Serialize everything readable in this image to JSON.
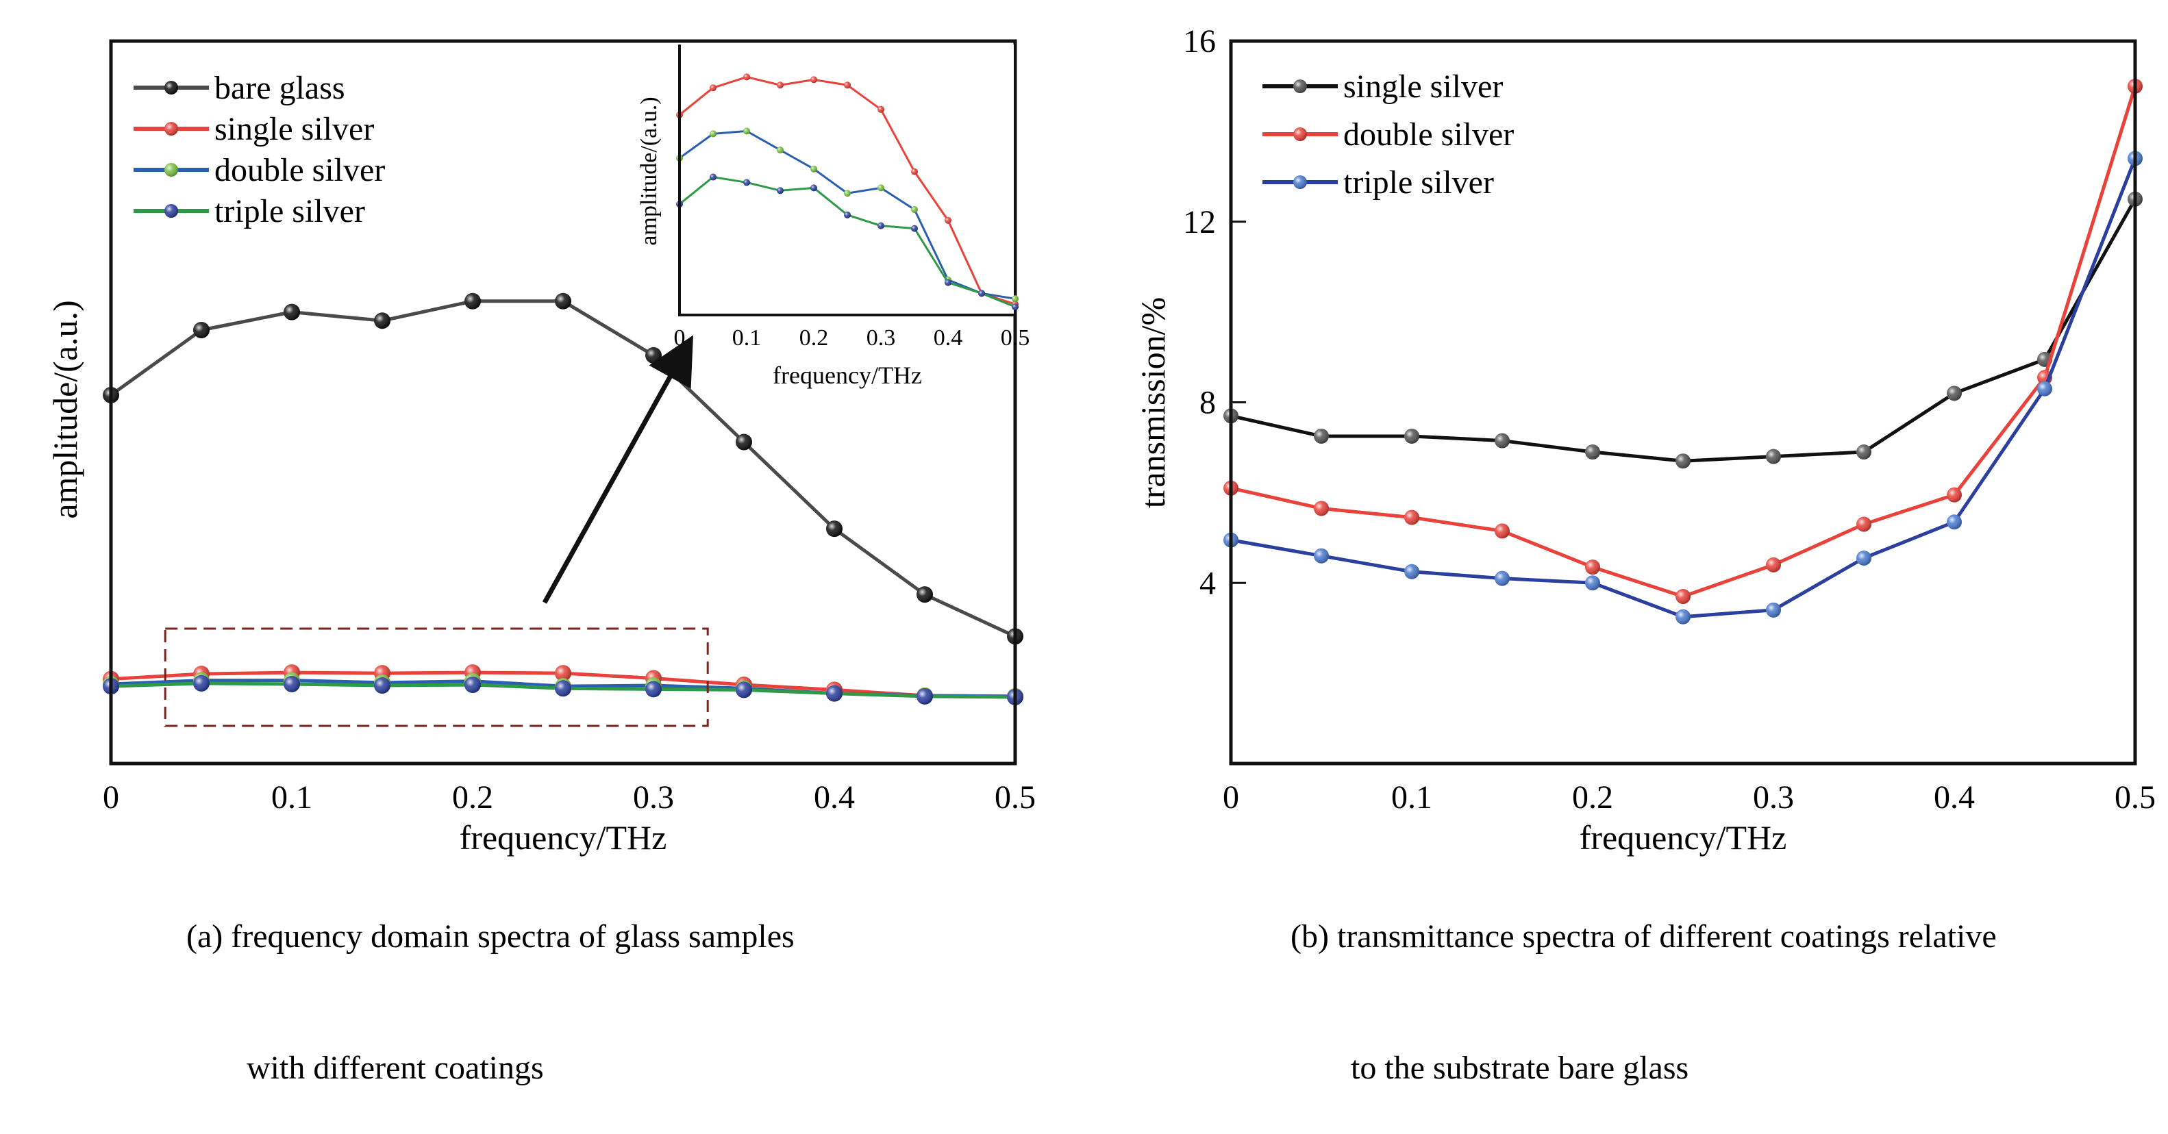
{
  "chart_data": [
    {
      "type": "line",
      "panel": "a",
      "caption_line1": "(a) frequency domain spectra of glass samples",
      "caption_line2": "with different coatings",
      "xlabel": "frequency/THz",
      "ylabel": "amplitude/(a.u.)",
      "xlim": [
        0,
        0.5
      ],
      "ylim": [
        0,
        1
      ],
      "x_ticks": [
        "0",
        "0.1",
        "0.2",
        "0.3",
        "0.4",
        "0.5"
      ],
      "grid": false,
      "legend_position": "top-left",
      "x": [
        0,
        0.05,
        0.1,
        0.15,
        0.2,
        0.25,
        0.3,
        0.35,
        0.4,
        0.45,
        0.5
      ],
      "series": [
        {
          "name": "bare glass",
          "color": "#4a4a4a",
          "marker": "#111111",
          "values": [
            0.51,
            0.6,
            0.625,
            0.613,
            0.64,
            0.64,
            0.565,
            0.445,
            0.325,
            0.234,
            0.176
          ]
        },
        {
          "name": "single silver",
          "color": "#e8423a",
          "marker": "#e8423a",
          "values": [
            0.117,
            0.124,
            0.126,
            0.125,
            0.126,
            0.125,
            0.118,
            0.109,
            0.102,
            0.094,
            0.093
          ]
        },
        {
          "name": "double silver",
          "color": "#2a5fb0",
          "marker": "#7cc242",
          "values": [
            0.11,
            0.115,
            0.115,
            0.112,
            0.114,
            0.107,
            0.108,
            0.104,
            0.097,
            0.094,
            0.093
          ]
        },
        {
          "name": "triple silver",
          "color": "#2e9a47",
          "marker": "#2b3f9e",
          "values": [
            0.107,
            0.111,
            0.11,
            0.108,
            0.109,
            0.104,
            0.103,
            0.102,
            0.097,
            0.093,
            0.092
          ]
        }
      ],
      "zoom_box": {
        "x_range": [
          0.03,
          0.33
        ]
      },
      "inset": {
        "xlabel": "frequency/THz",
        "ylabel": "amplitude/(a.u.)",
        "xlim": [
          0,
          0.5
        ],
        "ylim": [
          0,
          1
        ],
        "x_ticks": [
          "0",
          "0.1",
          "0.2",
          "0.3",
          "0.4",
          "0.5"
        ],
        "x": [
          0,
          0.05,
          0.1,
          0.15,
          0.2,
          0.25,
          0.3,
          0.35,
          0.4,
          0.45,
          0.5
        ],
        "series": [
          {
            "name": "single silver",
            "color": "#e8423a",
            "marker": "#e8423a",
            "values": [
              0.74,
              0.84,
              0.88,
              0.85,
              0.87,
              0.85,
              0.76,
              0.53,
              0.35,
              0.08,
              0.04
            ]
          },
          {
            "name": "double silver",
            "color": "#2a5fb0",
            "marker": "#7cc242",
            "values": [
              0.58,
              0.67,
              0.68,
              0.61,
              0.54,
              0.45,
              0.47,
              0.39,
              0.13,
              0.08,
              0.06
            ]
          },
          {
            "name": "triple silver",
            "color": "#2e9a47",
            "marker": "#2b3f9e",
            "values": [
              0.41,
              0.51,
              0.49,
              0.46,
              0.47,
              0.37,
              0.33,
              0.32,
              0.12,
              0.08,
              0.03
            ]
          }
        ]
      }
    },
    {
      "type": "line",
      "panel": "b",
      "caption_line1": "(b) transmittance spectra of different coatings relative",
      "caption_line2": "to the substrate bare glass",
      "xlabel": "frequency/THz",
      "ylabel": "transmission/%",
      "xlim": [
        0,
        0.5
      ],
      "ylim": [
        0,
        16
      ],
      "x_ticks": [
        "0",
        "0.1",
        "0.2",
        "0.3",
        "0.4",
        "0.5"
      ],
      "y_ticks": [
        "4",
        "8",
        "12",
        "16"
      ],
      "grid": false,
      "legend_position": "top-left",
      "x": [
        0,
        0.05,
        0.1,
        0.15,
        0.2,
        0.25,
        0.3,
        0.35,
        0.4,
        0.45,
        0.5
      ],
      "series": [
        {
          "name": "single silver",
          "color": "#111111",
          "marker": "#555555",
          "values": [
            7.7,
            7.25,
            7.25,
            7.15,
            6.9,
            6.7,
            6.8,
            6.9,
            8.2,
            8.95,
            12.5
          ]
        },
        {
          "name": "double silver",
          "color": "#e8423a",
          "marker": "#e8423a",
          "values": [
            6.1,
            5.65,
            5.45,
            5.15,
            4.35,
            3.7,
            4.4,
            5.3,
            5.95,
            8.55,
            15.0
          ]
        },
        {
          "name": "triple silver",
          "color": "#2b3f9e",
          "marker": "#4a7ad0",
          "values": [
            4.95,
            4.6,
            4.25,
            4.1,
            4.0,
            3.25,
            3.4,
            4.55,
            5.35,
            8.3,
            13.4
          ]
        }
      ]
    }
  ]
}
